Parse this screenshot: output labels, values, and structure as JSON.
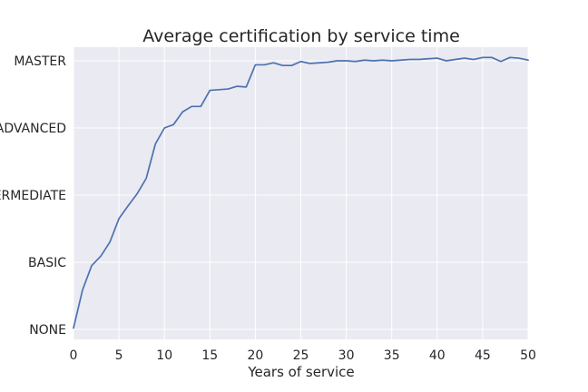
{
  "chart_data": {
    "type": "line",
    "title": "Average certification by service time",
    "xlabel": "Years of service",
    "ylabel": "",
    "xlim": [
      0,
      50
    ],
    "ylim": [
      0,
      4
    ],
    "x_ticks": [
      0,
      5,
      10,
      15,
      20,
      25,
      30,
      35,
      40,
      45,
      50
    ],
    "y_ticks": [
      0,
      1,
      2,
      3,
      4
    ],
    "y_tick_labels": [
      "NONE",
      "BASIC",
      "INTERMEDIATE",
      "ADVANCED",
      "MASTER"
    ],
    "grid": true,
    "colors": {
      "background": "#EAEAF2",
      "grid": "#FFFFFF",
      "line": "#4C72B0"
    },
    "series": [
      {
        "x": [
          0,
          1,
          2,
          3,
          4,
          5,
          6,
          7,
          8,
          9,
          10,
          11,
          12,
          13,
          14,
          15,
          16,
          17,
          18,
          19,
          20,
          21,
          22,
          23,
          24,
          25,
          26,
          27,
          28,
          29,
          30,
          31,
          32,
          33,
          34,
          35,
          36,
          37,
          38,
          39,
          40,
          41,
          42,
          43,
          44,
          45,
          46,
          47,
          48,
          49,
          50
        ],
        "values": [
          0.02,
          0.59,
          0.95,
          1.09,
          1.3,
          1.65,
          1.84,
          2.02,
          2.25,
          2.76,
          3.0,
          3.05,
          3.24,
          3.32,
          3.32,
          3.56,
          3.57,
          3.58,
          3.62,
          3.61,
          3.94,
          3.94,
          3.97,
          3.93,
          3.93,
          3.99,
          3.96,
          3.97,
          3.98,
          4.0,
          4.0,
          3.99,
          4.01,
          4.0,
          4.01,
          4.0,
          4.01,
          4.02,
          4.02,
          4.03,
          4.04,
          4.0,
          4.02,
          4.04,
          4.02,
          4.05,
          4.05,
          3.99,
          4.05,
          4.04,
          4.01
        ]
      }
    ]
  }
}
